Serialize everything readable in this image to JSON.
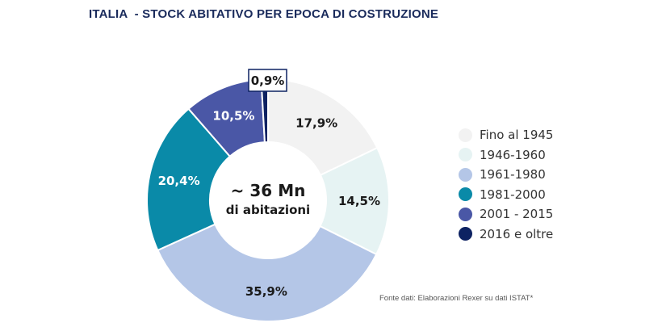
{
  "chart_data": {
    "type": "pie",
    "title": "ITALIA  - STOCK ABITATIVO PER EPOCA DI COSTRUZIONE",
    "center_label": {
      "line1": "~ 36 Mn",
      "line2": "di abitazioni"
    },
    "categories": [
      "Fino al 1945",
      "1946-1960",
      "1961-1980",
      "1981-2000",
      "2001 - 2015",
      "2016 e oltre"
    ],
    "values": [
      17.9,
      14.5,
      35.9,
      20.4,
      10.5,
      0.9
    ],
    "data_labels": [
      "17,9%",
      "14,5%",
      "35,9%",
      "20,4%",
      "10,5%",
      "0,9%"
    ],
    "colors": [
      "#f2f2f2",
      "#e6f3f3",
      "#b4c6e7",
      "#0a8aa8",
      "#4a57a6",
      "#0d2262"
    ],
    "label_colors": [
      "#1a1a1a",
      "#1a1a1a",
      "#1a1a1a",
      "#ffffff",
      "#ffffff",
      "#1a1a1a"
    ],
    "legend_placement": "right",
    "donut": true
  },
  "source": "Fonte dati: Elaborazioni Rexer su dati ISTAT*"
}
